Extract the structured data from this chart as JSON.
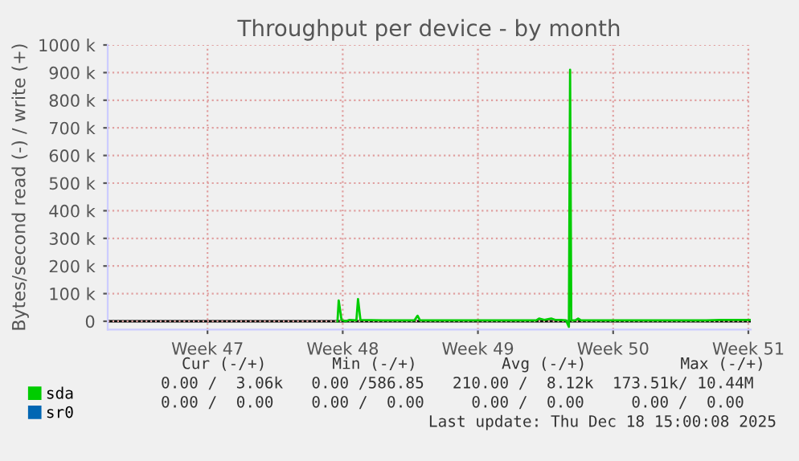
{
  "chart_data": {
    "type": "line",
    "title": "Throughput per device - by month",
    "ylabel": "Bytes/second read (-) / write (+)",
    "x": [
      "2025-11-27T05:30",
      "2025-11-27T07:00",
      "2025-11-27T10:30",
      "2025-11-27T15:30",
      "2025-11-27T20:30",
      "2025-11-28T05:00",
      "2025-11-28T07:00",
      "2025-11-28T10:00",
      "2025-11-29T13:00",
      "2025-12-01T05:00",
      "2025-12-01T09:00",
      "2025-12-01T12:00",
      "2025-12-03T18:00",
      "2025-12-05T20:00",
      "2025-12-07T12:30",
      "2025-12-07T16:00",
      "2025-12-07T22:30",
      "2025-12-08T07:00",
      "2025-12-08T12:00",
      "2025-12-08T19:00",
      "2025-12-09T01:30",
      "2025-12-09T05:00",
      "2025-12-09T06:30",
      "2025-12-09T08:00",
      "2025-12-09T13:00",
      "2025-12-09T16:30",
      "2025-12-09T20:00",
      "2025-12-12T20:00",
      "2025-12-16T08:00",
      "2025-12-17T01:00",
      "2025-12-18T15:00"
    ],
    "series": [
      {
        "name": "sda",
        "color": "#00cc00",
        "values": [
          0,
          75000,
          5000,
          0,
          5000,
          3000,
          80000,
          5000,
          3000,
          3000,
          20000,
          3000,
          3000,
          3000,
          3000,
          10000,
          5000,
          10000,
          5000,
          5000,
          3000,
          -20000,
          910000,
          3000,
          3000,
          10000,
          3000,
          3000,
          3000,
          5000,
          5000
        ]
      },
      {
        "name": "sr0",
        "color": "#0066b3",
        "values": [
          null,
          null,
          null,
          null,
          null,
          null,
          null,
          null,
          null,
          null,
          null,
          null,
          null,
          null,
          null,
          null,
          null,
          null,
          null,
          null,
          null,
          null,
          null,
          null,
          null,
          null,
          null,
          null,
          null,
          null,
          null
        ]
      }
    ],
    "xlim": [
      "2025-11-15T08:00",
      "2025-12-18T15:00"
    ],
    "xticks": [
      {
        "value": "2025-11-20T12:00",
        "label": "Week 47"
      },
      {
        "value": "2025-11-27T12:00",
        "label": "Week 48"
      },
      {
        "value": "2025-12-04T12:00",
        "label": "Week 49"
      },
      {
        "value": "2025-12-11T12:00",
        "label": "Week 50"
      },
      {
        "value": "2025-12-18T12:00",
        "label": "Week 51"
      }
    ],
    "ylim": [
      -30000,
      1000000
    ],
    "yticks": [
      0,
      {
        "value": 100000,
        "label": "100 k"
      },
      {
        "value": 200000,
        "label": "200 k"
      },
      {
        "value": 300000,
        "label": "300 k"
      },
      {
        "value": 400000,
        "label": "400 k"
      },
      {
        "value": 500000,
        "label": "500 k"
      },
      {
        "value": 600000,
        "label": "600 k"
      },
      {
        "value": 700000,
        "label": "700 k"
      },
      {
        "value": 800000,
        "label": "800 k"
      },
      {
        "value": 900000,
        "label": "900 k"
      },
      {
        "value": 1000000,
        "label": "1000 k"
      }
    ],
    "grid": true,
    "legend": "bottom left",
    "marker": "none",
    "line_style": "solid",
    "annotations": [
      "Cur (-/+)       Min (-/+)         Avg (-/+)          Max (-/+)",
      "0.00 /  3.06k   0.00 /586.85   210.00 /  8.12k  173.51k/ 10.44M",
      "0.00 /  0.00    0.00 /  0.00     0.00 /  0.00     0.00 /  0.00",
      "Last update: Thu Dec 18 15:00:08 2025"
    ]
  }
}
